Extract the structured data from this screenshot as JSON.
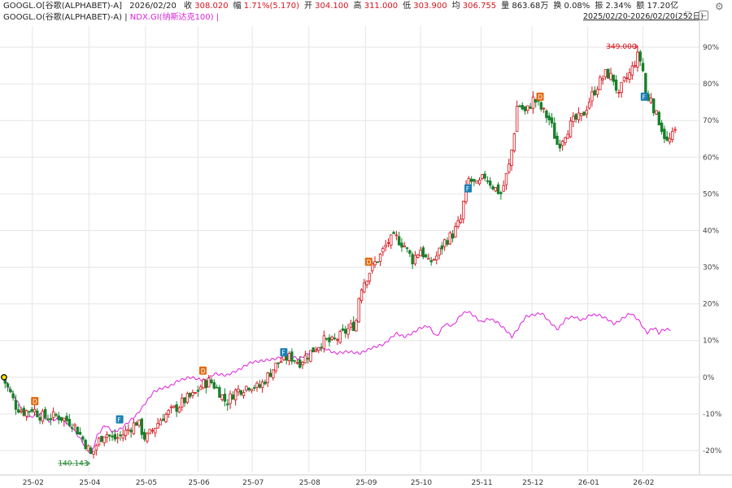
{
  "header": {
    "symbol": "GOOGL.O[谷歌(ALPHABET)-A]",
    "date": "2026/02/20",
    "quote": [
      {
        "label": "收",
        "value": "308.020",
        "tone": "up"
      },
      {
        "label": "幅",
        "value": "1.71%(5.170)",
        "tone": "up"
      },
      {
        "label": "开",
        "value": "304.100",
        "tone": "up"
      },
      {
        "label": "高",
        "value": "311.000",
        "tone": "up"
      },
      {
        "label": "低",
        "value": "303.900",
        "tone": "up"
      },
      {
        "label": "均",
        "value": "306.755",
        "tone": "up"
      },
      {
        "label": "量",
        "value": "863.68万",
        "tone": "n"
      },
      {
        "label": "换",
        "value": "0.08%",
        "tone": "n"
      },
      {
        "label": "振",
        "value": "2.34%",
        "tone": "n"
      },
      {
        "label": "额",
        "value": "17.20亿",
        "tone": "n"
      }
    ],
    "legend_main": "GOOGL.O(谷歌(ALPHABET)-A)",
    "legend_sep": "|",
    "legend_compare": "NDX.GI(纳斯达克100)",
    "legend_end": "|",
    "range": "2025/02/20-2026/02/20(252日)",
    "range_arrow": "▽",
    "gear": "⚙"
  },
  "colors": {
    "up": "#d4141c",
    "down": "#17812b",
    "compare": "#e020e0",
    "grid": "#e6e6e6",
    "marker_d": "#e06a10",
    "marker_f": "#1a7fb5"
  },
  "chart_data": {
    "type": "candlestick",
    "y_axis": {
      "unit": "percent",
      "ticks": [
        "90%",
        "80%",
        "70%",
        "60%",
        "50%",
        "40%",
        "30%",
        "20%",
        "10%",
        "0%",
        "-10%",
        "-20%"
      ],
      "tick_values": [
        90,
        80,
        70,
        60,
        50,
        40,
        30,
        20,
        10,
        0,
        -10,
        -20
      ],
      "range": [
        -24,
        94
      ]
    },
    "x_axis": {
      "ticks": [
        "25-02",
        "25-04",
        "25-05",
        "25-06",
        "25-07",
        "25-08",
        "25-09",
        "25-10",
        "25-11",
        "25-12",
        "26-01",
        "26-02"
      ],
      "tick_positions": [
        0.04,
        0.11,
        0.18,
        0.245,
        0.312,
        0.382,
        0.452,
        0.52,
        0.595,
        0.658,
        0.727,
        0.795
      ],
      "range": [
        0,
        0.845
      ]
    },
    "annotations": [
      {
        "text": "349.000",
        "t": 0.79,
        "v": 90.2,
        "tone": "up",
        "side": "left"
      },
      {
        "text": "140.143",
        "t": 0.112,
        "v": -23.5,
        "tone": "down",
        "side": "left"
      }
    ],
    "markers": [
      {
        "text": "D",
        "t": 0.043,
        "v": -6.5,
        "kind": "d"
      },
      {
        "text": "F",
        "t": 0.148,
        "v": -11.5,
        "kind": "f"
      },
      {
        "text": "D",
        "t": 0.251,
        "v": 1.8,
        "kind": "d"
      },
      {
        "text": "F",
        "t": 0.351,
        "v": 6.8,
        "kind": "f"
      },
      {
        "text": "D",
        "t": 0.456,
        "v": 31.5,
        "kind": "d"
      },
      {
        "text": "F",
        "t": 0.579,
        "v": 51.5,
        "kind": "f"
      },
      {
        "text": "D",
        "t": 0.668,
        "v": 76.5,
        "kind": "d"
      },
      {
        "text": "F",
        "t": 0.797,
        "v": 76.5,
        "kind": "f"
      }
    ],
    "anchor": {
      "t": 0.003,
      "v": 0
    },
    "series": [
      {
        "name": "GOOGL.O(谷歌(ALPHABET)-A)",
        "kind": "candles",
        "knots": [
          [
            0.003,
            0
          ],
          [
            0.012,
            -4
          ],
          [
            0.02,
            -8
          ],
          [
            0.03,
            -9.5
          ],
          [
            0.04,
            -8.5
          ],
          [
            0.05,
            -10.5
          ],
          [
            0.06,
            -11
          ],
          [
            0.07,
            -10.5
          ],
          [
            0.08,
            -11.5
          ],
          [
            0.09,
            -12.5
          ],
          [
            0.1,
            -16
          ],
          [
            0.108,
            -19
          ],
          [
            0.113,
            -21.5
          ],
          [
            0.12,
            -18
          ],
          [
            0.13,
            -15
          ],
          [
            0.14,
            -17
          ],
          [
            0.15,
            -16
          ],
          [
            0.16,
            -14
          ],
          [
            0.17,
            -12
          ],
          [
            0.18,
            -17
          ],
          [
            0.19,
            -14
          ],
          [
            0.2,
            -11
          ],
          [
            0.21,
            -9.5
          ],
          [
            0.22,
            -8
          ],
          [
            0.23,
            -6
          ],
          [
            0.24,
            -5
          ],
          [
            0.25,
            -2
          ],
          [
            0.26,
            -1
          ],
          [
            0.27,
            -3.5
          ],
          [
            0.28,
            -7
          ],
          [
            0.29,
            -4
          ],
          [
            0.3,
            -3
          ],
          [
            0.31,
            -2
          ],
          [
            0.32,
            -3
          ],
          [
            0.33,
            0
          ],
          [
            0.34,
            3
          ],
          [
            0.35,
            5
          ],
          [
            0.36,
            5.5
          ],
          [
            0.37,
            4
          ],
          [
            0.38,
            6
          ],
          [
            0.39,
            8
          ],
          [
            0.4,
            10
          ],
          [
            0.41,
            9.5
          ],
          [
            0.42,
            11
          ],
          [
            0.43,
            13
          ],
          [
            0.44,
            14.5
          ],
          [
            0.445,
            24
          ],
          [
            0.45,
            26
          ],
          [
            0.46,
            30
          ],
          [
            0.47,
            33
          ],
          [
            0.48,
            37
          ],
          [
            0.49,
            38
          ],
          [
            0.5,
            36
          ],
          [
            0.51,
            32
          ],
          [
            0.52,
            35
          ],
          [
            0.53,
            31
          ],
          [
            0.54,
            33
          ],
          [
            0.55,
            37
          ],
          [
            0.56,
            39
          ],
          [
            0.57,
            43
          ],
          [
            0.575,
            50
          ],
          [
            0.58,
            54
          ],
          [
            0.59,
            52
          ],
          [
            0.6,
            55
          ],
          [
            0.61,
            52
          ],
          [
            0.62,
            50
          ],
          [
            0.63,
            58
          ],
          [
            0.635,
            65
          ],
          [
            0.64,
            75
          ],
          [
            0.65,
            72
          ],
          [
            0.66,
            76
          ],
          [
            0.67,
            73
          ],
          [
            0.68,
            70
          ],
          [
            0.69,
            63
          ],
          [
            0.7,
            67
          ],
          [
            0.71,
            70
          ],
          [
            0.72,
            71
          ],
          [
            0.73,
            76
          ],
          [
            0.74,
            80
          ],
          [
            0.75,
            83
          ],
          [
            0.76,
            81
          ],
          [
            0.765,
            76
          ],
          [
            0.77,
            80
          ],
          [
            0.78,
            83
          ],
          [
            0.785,
            86
          ],
          [
            0.79,
            88
          ],
          [
            0.795,
            84
          ],
          [
            0.8,
            74
          ],
          [
            0.805,
            77
          ],
          [
            0.81,
            72
          ],
          [
            0.815,
            70
          ],
          [
            0.82,
            67
          ],
          [
            0.825,
            64
          ],
          [
            0.83,
            65
          ],
          [
            0.835,
            67
          ]
        ]
      },
      {
        "name": "NDX.GI(纳斯达克100)",
        "kind": "line",
        "knots": [
          [
            0.003,
            0
          ],
          [
            0.012,
            -3
          ],
          [
            0.025,
            -8
          ],
          [
            0.035,
            -11
          ],
          [
            0.05,
            -10
          ],
          [
            0.06,
            -12
          ],
          [
            0.075,
            -11
          ],
          [
            0.09,
            -14
          ],
          [
            0.1,
            -17
          ],
          [
            0.107,
            -19.5
          ],
          [
            0.113,
            -21
          ],
          [
            0.12,
            -16
          ],
          [
            0.13,
            -13
          ],
          [
            0.14,
            -15
          ],
          [
            0.15,
            -14
          ],
          [
            0.16,
            -12
          ],
          [
            0.17,
            -10
          ],
          [
            0.18,
            -7
          ],
          [
            0.19,
            -4
          ],
          [
            0.2,
            -3
          ],
          [
            0.21,
            -2.5
          ],
          [
            0.22,
            -1
          ],
          [
            0.235,
            0
          ],
          [
            0.245,
            -0.5
          ],
          [
            0.255,
            -1
          ],
          [
            0.265,
            1
          ],
          [
            0.28,
            0.5
          ],
          [
            0.295,
            2
          ],
          [
            0.31,
            4
          ],
          [
            0.325,
            4.5
          ],
          [
            0.34,
            5
          ],
          [
            0.355,
            6
          ],
          [
            0.37,
            5
          ],
          [
            0.385,
            7
          ],
          [
            0.4,
            8
          ],
          [
            0.415,
            6.5
          ],
          [
            0.43,
            7
          ],
          [
            0.445,
            6.5
          ],
          [
            0.46,
            8
          ],
          [
            0.475,
            9
          ],
          [
            0.49,
            12
          ],
          [
            0.5,
            11
          ],
          [
            0.51,
            12
          ],
          [
            0.52,
            13.5
          ],
          [
            0.53,
            14
          ],
          [
            0.54,
            11
          ],
          [
            0.55,
            14.5
          ],
          [
            0.56,
            14
          ],
          [
            0.57,
            17
          ],
          [
            0.578,
            18
          ],
          [
            0.585,
            17
          ],
          [
            0.595,
            15
          ],
          [
            0.605,
            16
          ],
          [
            0.615,
            15
          ],
          [
            0.625,
            13
          ],
          [
            0.633,
            11
          ],
          [
            0.64,
            13
          ],
          [
            0.65,
            16.5
          ],
          [
            0.66,
            17
          ],
          [
            0.67,
            17.5
          ],
          [
            0.68,
            15
          ],
          [
            0.69,
            13
          ],
          [
            0.7,
            16
          ],
          [
            0.71,
            16.5
          ],
          [
            0.72,
            15.5
          ],
          [
            0.73,
            17
          ],
          [
            0.74,
            17
          ],
          [
            0.75,
            16
          ],
          [
            0.76,
            14.5
          ],
          [
            0.77,
            16
          ],
          [
            0.78,
            17.5
          ],
          [
            0.79,
            15.5
          ],
          [
            0.8,
            12
          ],
          [
            0.805,
            13
          ],
          [
            0.81,
            13.5
          ],
          [
            0.815,
            12
          ],
          [
            0.82,
            13
          ],
          [
            0.83,
            13
          ]
        ]
      }
    ]
  }
}
